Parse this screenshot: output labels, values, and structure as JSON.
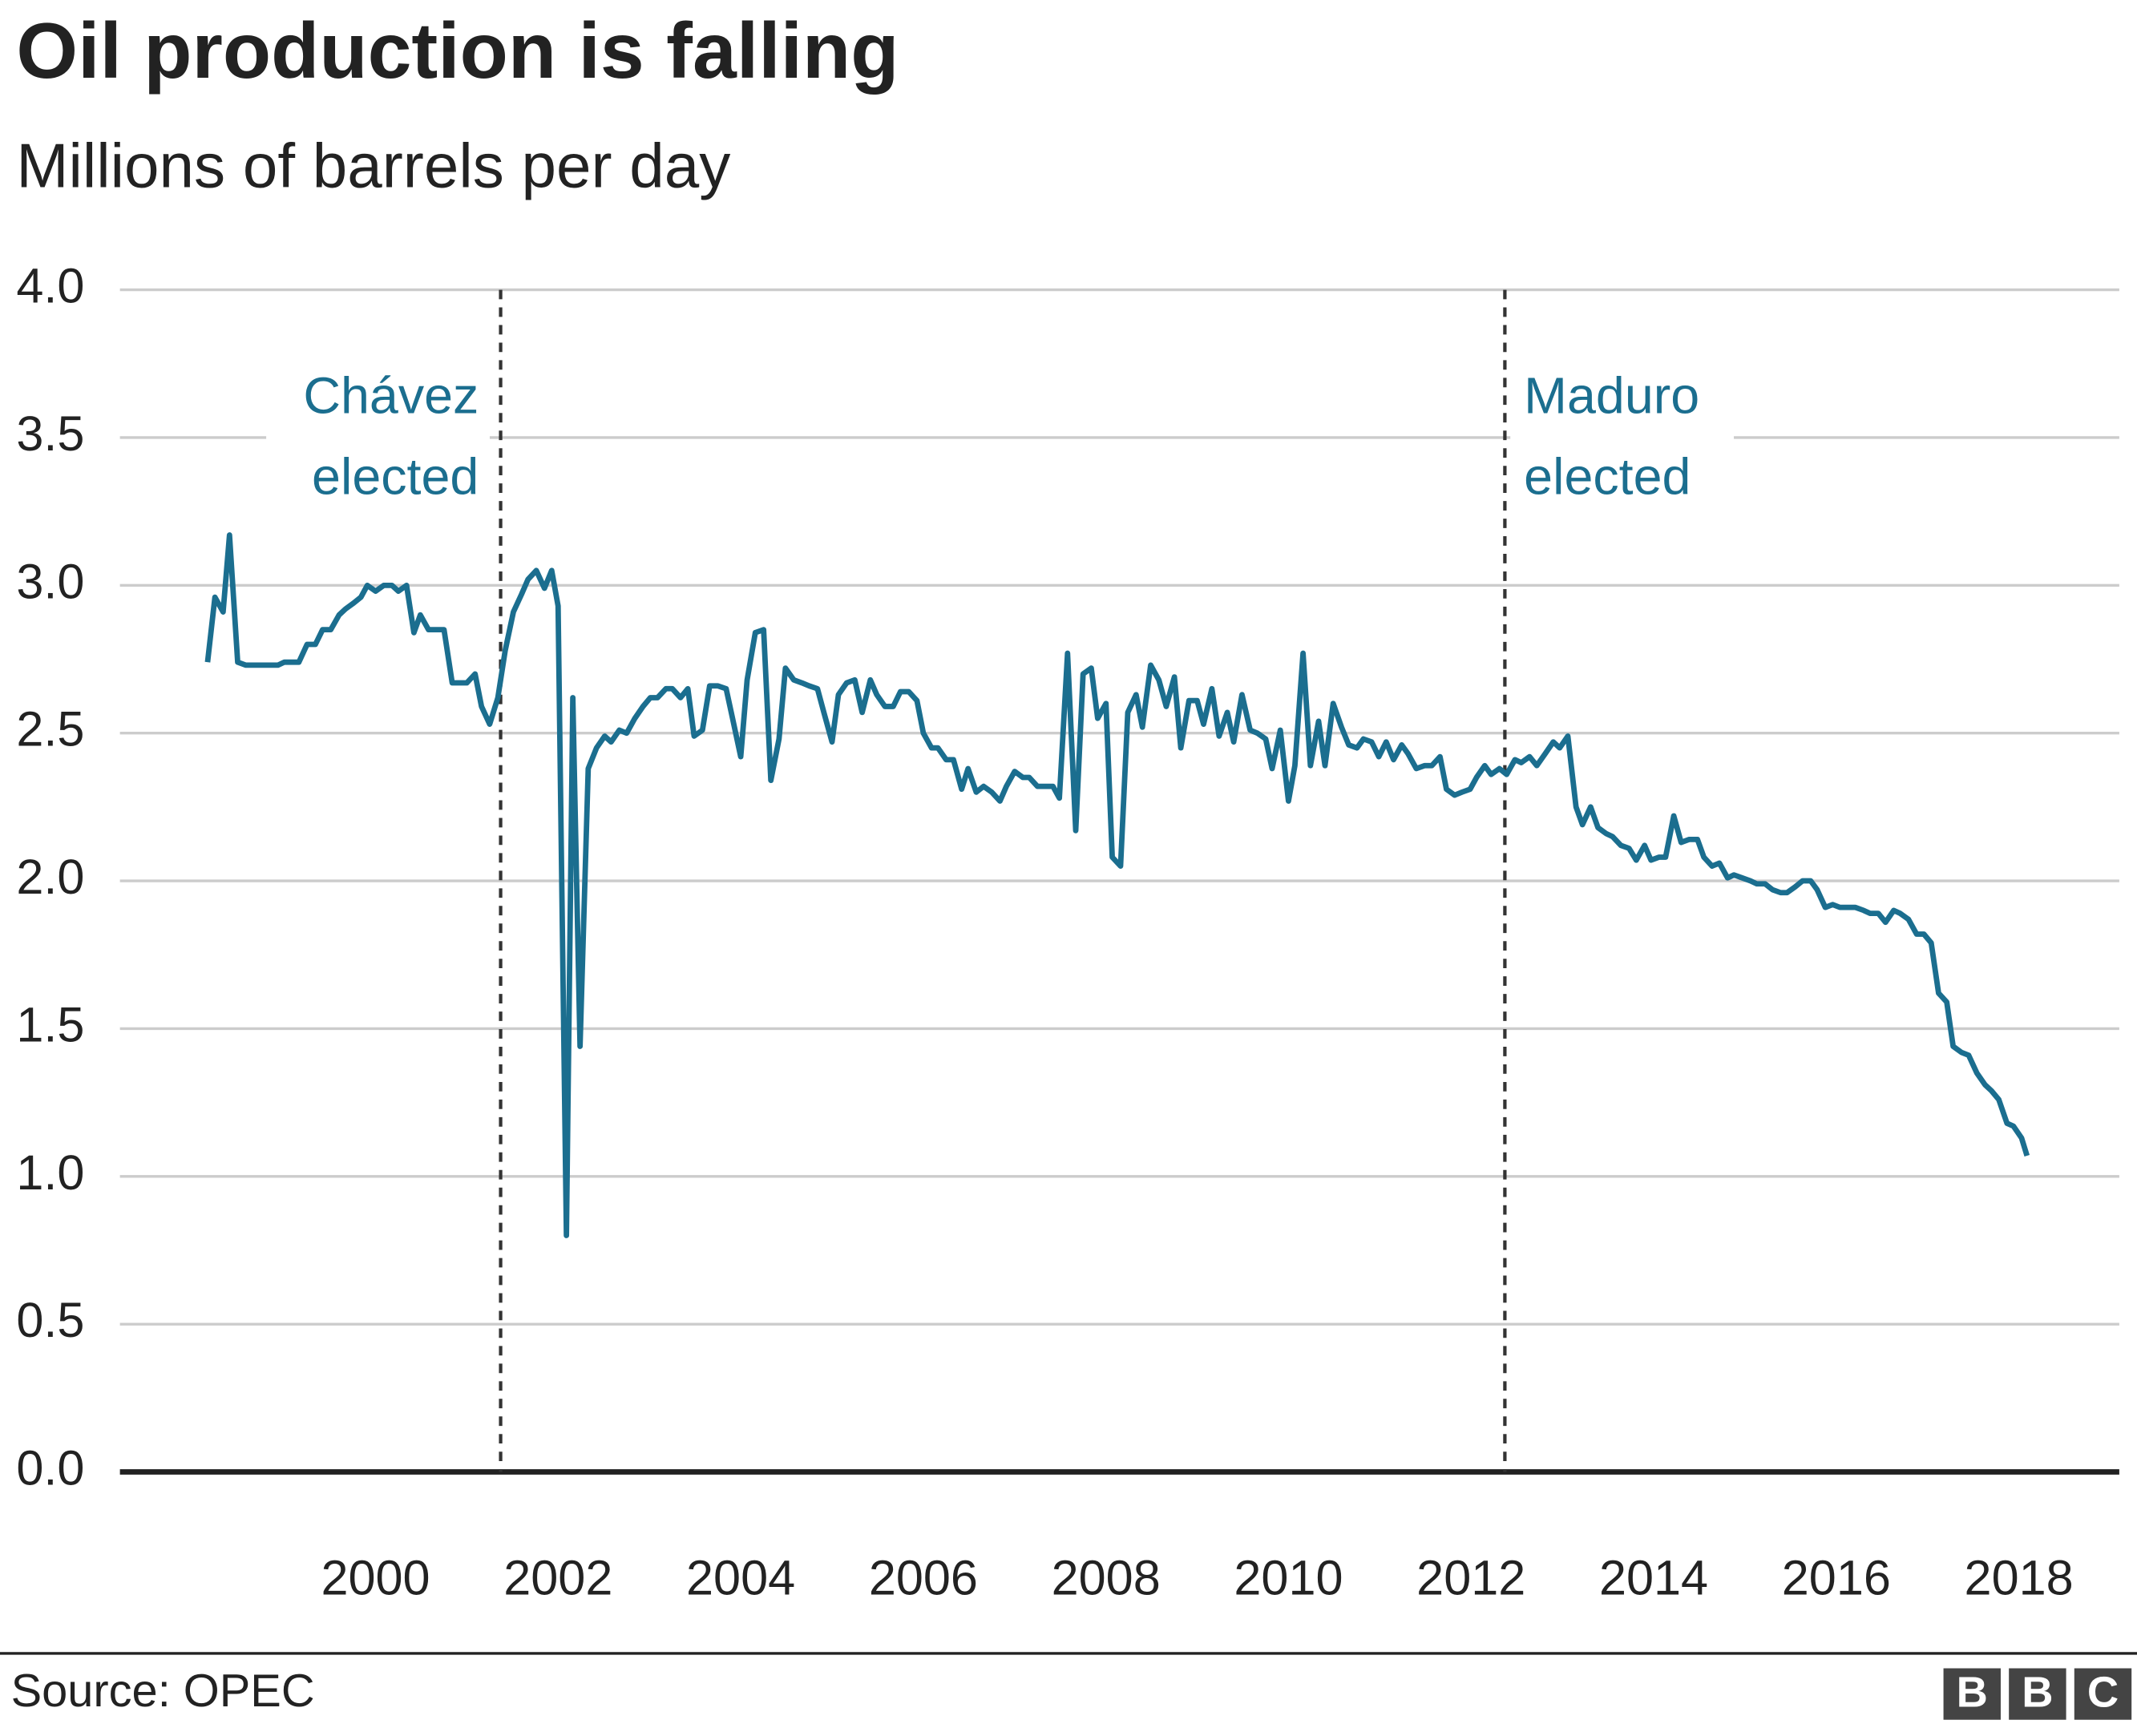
{
  "chart_data": {
    "type": "line",
    "title": "Oil production is falling",
    "subtitle": "Millions of barrels per day",
    "source": "Source: OPEC",
    "logo": [
      "B",
      "B",
      "C"
    ],
    "color": "#1b6e8f",
    "grid": true,
    "xlim": [
      1997.2,
      2019.1
    ],
    "xticks": [
      2000,
      2002,
      2004,
      2006,
      2008,
      2010,
      2012,
      2014,
      2016,
      2018
    ],
    "ylim": [
      0,
      4
    ],
    "yticks": [
      {
        "value": 0,
        "label": "0.0"
      },
      0.5,
      {
        "value": 1,
        "label": "1.0"
      },
      1.5,
      {
        "value": 2,
        "label": "2.0"
      },
      2.5,
      {
        "value": 3,
        "label": "3.0"
      },
      3.5,
      {
        "value": 4,
        "label": "4.0"
      }
    ],
    "annotations": [
      {
        "x": 2001.37,
        "lines": [
          "Chávez",
          "elected"
        ]
      },
      {
        "x": 2012.37,
        "lines": [
          "Maduro",
          "elected"
        ]
      }
    ],
    "x": [
      1998.16,
      1998.24,
      1998.33,
      1998.4,
      1998.49,
      1998.58,
      1998.93,
      1999.0,
      1999.16,
      1999.25,
      1999.34,
      1999.42,
      1999.51,
      1999.6,
      1999.67,
      1999.76,
      1999.84,
      1999.91,
      2000.0,
      2000.09,
      2000.18,
      2000.25,
      2000.34,
      2000.42,
      2000.49,
      2000.58,
      2000.75,
      2000.84,
      2001.0,
      2001.09,
      2001.16,
      2001.25,
      2001.34,
      2001.42,
      2001.51,
      2001.6,
      2001.67,
      2001.76,
      2001.85,
      2001.93,
      2002.0,
      2002.09,
      2002.16,
      2002.24,
      2002.33,
      2002.42,
      2002.51,
      2002.58,
      2002.67,
      2002.75,
      2002.84,
      2002.93,
      2003.01,
      2003.09,
      2003.18,
      2003.25,
      2003.34,
      2003.42,
      2003.49,
      2003.58,
      2003.66,
      2003.75,
      2003.84,
      2003.91,
      2004.0,
      2004.07,
      2004.16,
      2004.25,
      2004.33,
      2004.42,
      2004.49,
      2004.58,
      2004.67,
      2004.75,
      2004.84,
      2004.91,
      2005.0,
      2005.07,
      2005.16,
      2005.25,
      2005.33,
      2005.42,
      2005.49,
      2005.58,
      2005.67,
      2005.75,
      2005.84,
      2005.93,
      2006.0,
      2006.09,
      2006.16,
      2006.25,
      2006.33,
      2006.42,
      2006.49,
      2006.58,
      2006.66,
      2006.75,
      2006.84,
      2006.91,
      2007.0,
      2007.09,
      2007.16,
      2007.25,
      2007.42,
      2007.49,
      2007.58,
      2007.67,
      2007.75,
      2007.84,
      2007.91,
      2008.0,
      2008.07,
      2008.16,
      2008.24,
      2008.33,
      2008.4,
      2008.49,
      2008.58,
      2008.66,
      2008.75,
      2008.82,
      2008.91,
      2009.0,
      2009.07,
      2009.16,
      2009.24,
      2009.33,
      2009.4,
      2009.49,
      2009.58,
      2009.66,
      2009.75,
      2009.82,
      2009.91,
      2010.0,
      2010.07,
      2010.16,
      2010.24,
      2010.33,
      2010.4,
      2010.49,
      2010.58,
      2010.66,
      2010.75,
      2010.82,
      2010.91,
      2010.99,
      2011.07,
      2011.15,
      2011.24,
      2011.31,
      2011.4,
      2011.49,
      2011.57,
      2011.66,
      2011.73,
      2011.82,
      2011.9,
      2011.99,
      2012.06,
      2012.15,
      2012.22,
      2012.31,
      2012.39,
      2012.48,
      2012.55,
      2012.64,
      2012.72,
      2012.81,
      2012.9,
      2012.97,
      2013.06,
      2013.15,
      2013.22,
      2013.31,
      2013.39,
      2013.48,
      2013.55,
      2013.64,
      2013.73,
      2013.81,
      2013.9,
      2013.97,
      2014.06,
      2014.13,
      2014.22,
      2014.3,
      2014.39,
      2014.48,
      2014.55,
      2014.64,
      2014.72,
      2014.81,
      2014.88,
      2014.97,
      2015.06,
      2015.13,
      2015.22,
      2015.3,
      2015.39,
      2015.46,
      2015.55,
      2015.63,
      2015.72,
      2015.79,
      2015.88,
      2015.96,
      2016.04,
      2016.21,
      2016.3,
      2016.37,
      2016.46,
      2016.54,
      2016.63,
      2016.7,
      2016.79,
      2016.88,
      2016.96,
      2017.04,
      2017.12,
      2017.21,
      2017.28,
      2017.37,
      2017.45,
      2017.54,
      2017.63,
      2017.7,
      2017.78,
      2017.87,
      2017.94,
      2018.03,
      2018.09
    ],
    "values": [
      2.74,
      2.96,
      2.91,
      3.17,
      2.74,
      2.73,
      2.73,
      2.74,
      2.74,
      2.8,
      2.8,
      2.85,
      2.85,
      2.9,
      2.92,
      2.94,
      2.96,
      3.0,
      2.98,
      3.0,
      3.0,
      2.98,
      3.0,
      2.84,
      2.9,
      2.85,
      2.85,
      2.67,
      2.67,
      2.7,
      2.59,
      2.53,
      2.62,
      2.78,
      2.91,
      2.97,
      3.02,
      3.05,
      2.99,
      3.05,
      2.93,
      0.8,
      2.62,
      1.44,
      2.38,
      2.45,
      2.49,
      2.47,
      2.51,
      2.5,
      2.55,
      2.59,
      2.62,
      2.62,
      2.65,
      2.65,
      2.62,
      2.65,
      2.49,
      2.51,
      2.66,
      2.66,
      2.65,
      2.55,
      2.42,
      2.68,
      2.84,
      2.85,
      2.34,
      2.48,
      2.72,
      2.68,
      2.67,
      2.66,
      2.65,
      2.57,
      2.47,
      2.63,
      2.67,
      2.68,
      2.57,
      2.68,
      2.63,
      2.59,
      2.59,
      2.64,
      2.64,
      2.61,
      2.5,
      2.45,
      2.45,
      2.41,
      2.41,
      2.31,
      2.38,
      2.3,
      2.32,
      2.3,
      2.27,
      2.32,
      2.37,
      2.35,
      2.35,
      2.32,
      2.32,
      2.28,
      2.77,
      2.17,
      2.7,
      2.72,
      2.55,
      2.6,
      2.08,
      2.05,
      2.57,
      2.63,
      2.52,
      2.73,
      2.68,
      2.59,
      2.69,
      2.45,
      2.61,
      2.61,
      2.53,
      2.65,
      2.49,
      2.57,
      2.47,
      2.63,
      2.51,
      2.5,
      2.48,
      2.38,
      2.51,
      2.27,
      2.39,
      2.77,
      2.39,
      2.54,
      2.39,
      2.6,
      2.52,
      2.46,
      2.45,
      2.48,
      2.47,
      2.42,
      2.47,
      2.41,
      2.46,
      2.43,
      2.38,
      2.39,
      2.39,
      2.42,
      2.31,
      2.29,
      2.3,
      2.31,
      2.35,
      2.39,
      2.36,
      2.38,
      2.36,
      2.41,
      2.4,
      2.42,
      2.39,
      2.43,
      2.47,
      2.45,
      2.49,
      2.25,
      2.19,
      2.25,
      2.18,
      2.16,
      2.15,
      2.12,
      2.11,
      2.07,
      2.12,
      2.07,
      2.08,
      2.08,
      2.22,
      2.13,
      2.14,
      2.14,
      2.08,
      2.05,
      2.06,
      2.01,
      2.02,
      2.01,
      2.0,
      1.99,
      1.99,
      1.97,
      1.96,
      1.96,
      1.98,
      2.0,
      2.0,
      1.97,
      1.91,
      1.92,
      1.91,
      1.91,
      1.9,
      1.89,
      1.89,
      1.86,
      1.9,
      1.89,
      1.87,
      1.82,
      1.82,
      1.79,
      1.62,
      1.59,
      1.44,
      1.42,
      1.41,
      1.35,
      1.31,
      1.29,
      1.26,
      1.18,
      1.17,
      1.13,
      1.07
    ]
  }
}
